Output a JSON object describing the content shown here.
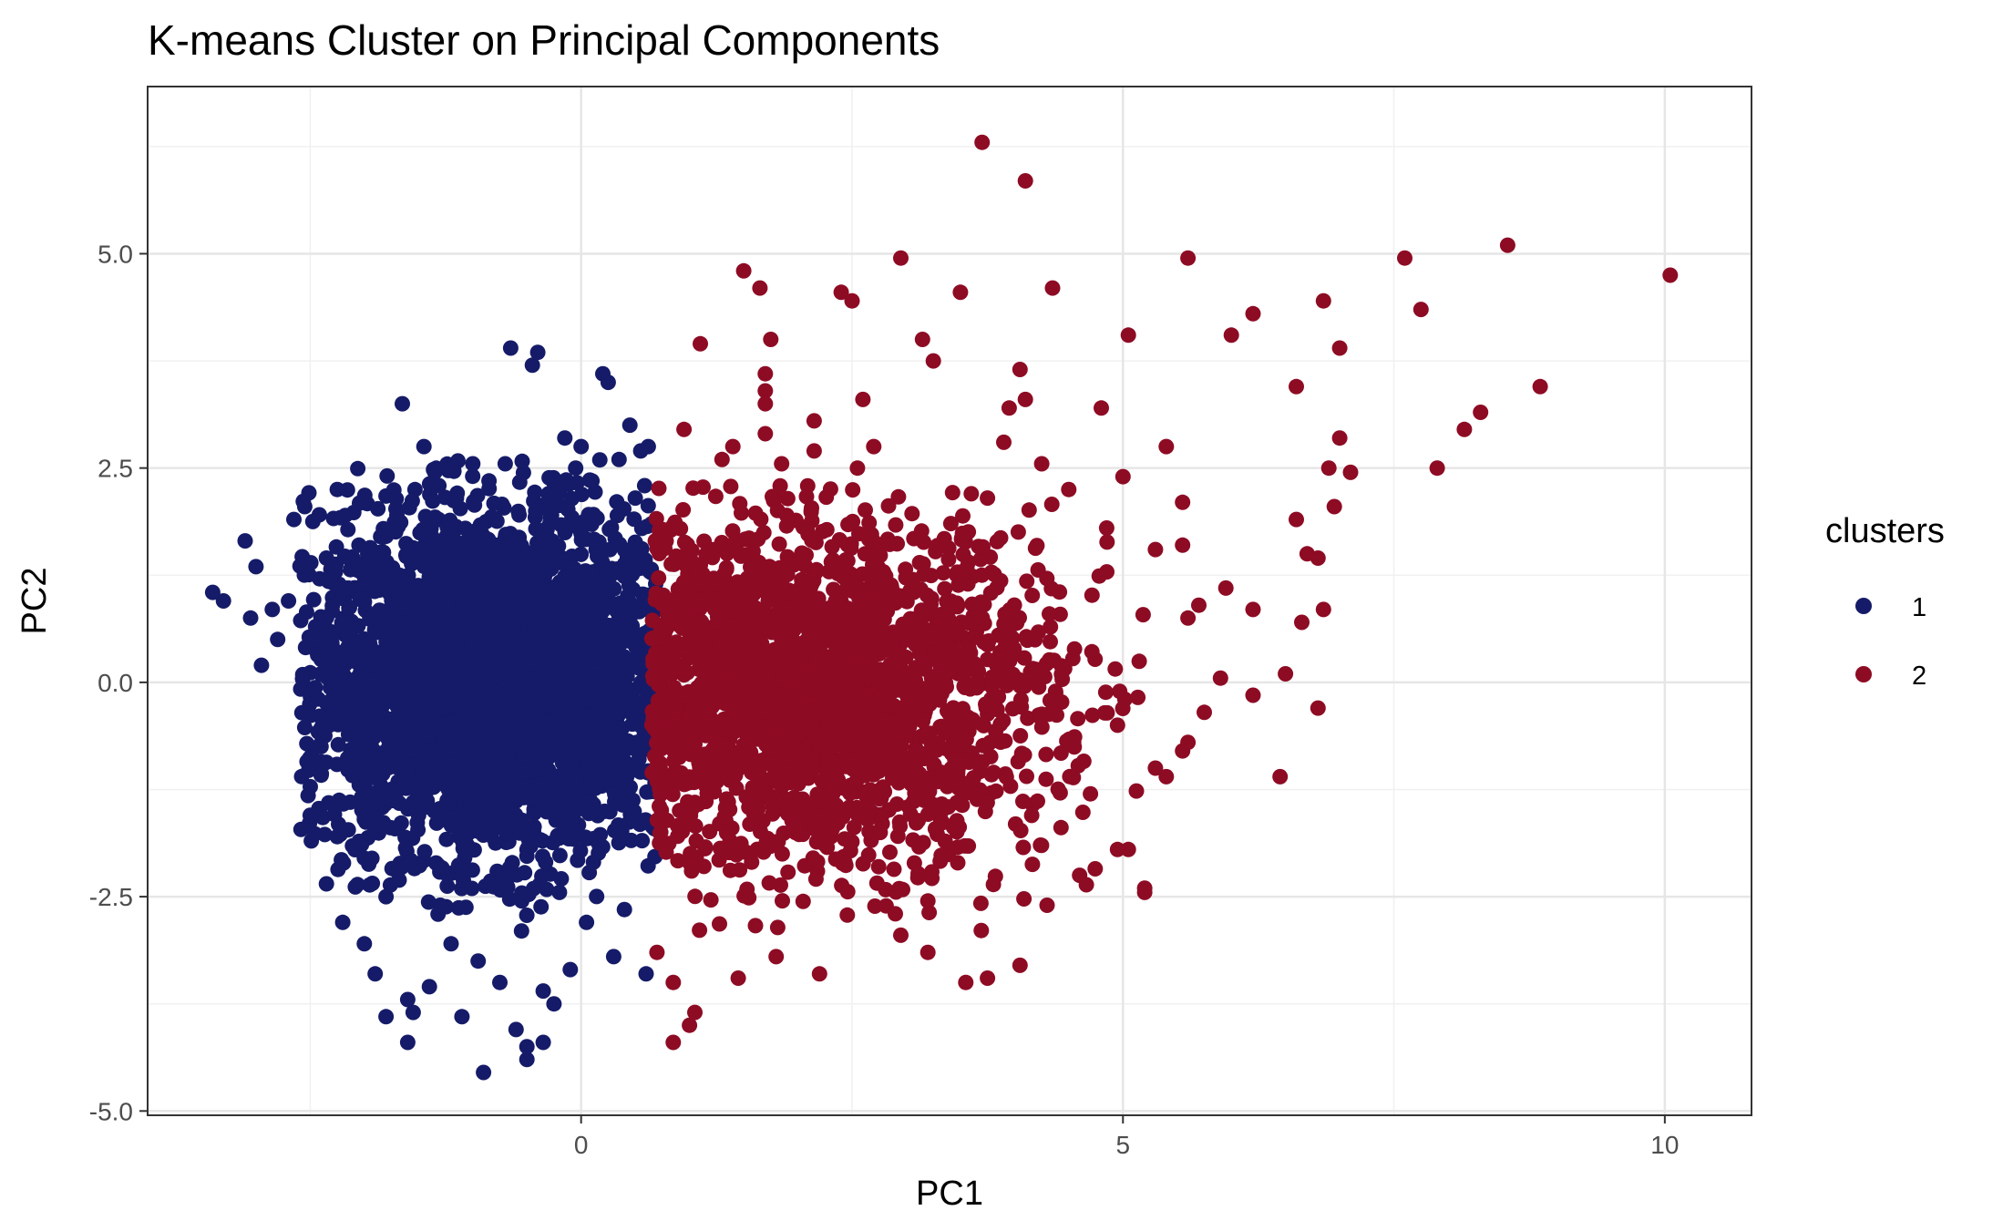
{
  "chart_data": {
    "type": "scatter",
    "title": "K-means Cluster on Principal Components",
    "xlabel": "PC1",
    "ylabel": "PC2",
    "xlim": [
      -4.0,
      10.8
    ],
    "ylim": [
      -5.05,
      6.95
    ],
    "x_ticks": [
      0,
      5,
      10
    ],
    "x_tick_labels": [
      "0",
      "5",
      "10"
    ],
    "y_ticks": [
      -5.0,
      -2.5,
      0.0,
      2.5,
      5.0
    ],
    "y_tick_labels": [
      "-5.0",
      "-2.5",
      "0.0",
      "2.5",
      "5.0"
    ],
    "grid": true,
    "legend": {
      "title": "clusters",
      "placement": "right"
    },
    "series": [
      {
        "name": "1",
        "color": "#151b68",
        "points": [
          [
            -3.4,
            1.05
          ],
          [
            -3.3,
            0.95
          ],
          [
            -3.1,
            1.65
          ],
          [
            -3.05,
            0.75
          ],
          [
            -3.0,
            1.35
          ],
          [
            -2.95,
            0.2
          ],
          [
            -2.85,
            0.85
          ],
          [
            -2.8,
            0.5
          ],
          [
            -2.7,
            0.95
          ],
          [
            -2.65,
            1.9
          ],
          [
            -2.55,
            2.05
          ],
          [
            -2.5,
            -1.55
          ],
          [
            -2.45,
            0.65
          ],
          [
            -2.4,
            -0.75
          ],
          [
            -2.35,
            1.45
          ],
          [
            -2.35,
            -2.35
          ],
          [
            -2.3,
            0.25
          ],
          [
            -2.25,
            2.25
          ],
          [
            -2.25,
            -1.8
          ],
          [
            -2.2,
            -2.8
          ],
          [
            -2.15,
            1.1
          ],
          [
            -2.1,
            -0.4
          ],
          [
            -2.05,
            1.6
          ],
          [
            -2.0,
            -2.05
          ],
          [
            -2.0,
            -3.05
          ],
          [
            -1.95,
            0.45
          ],
          [
            -1.9,
            -3.4
          ],
          [
            -1.85,
            -1.2
          ],
          [
            -1.85,
            1.7
          ],
          [
            -1.8,
            -3.9
          ],
          [
            -1.8,
            -2.5
          ],
          [
            -1.75,
            0.1
          ],
          [
            -1.7,
            1.95
          ],
          [
            -1.7,
            -2.2
          ],
          [
            -1.65,
            3.25
          ],
          [
            -1.6,
            -4.2
          ],
          [
            -1.55,
            -3.85
          ],
          [
            -1.5,
            -1.55
          ],
          [
            -1.45,
            2.75
          ],
          [
            -1.4,
            -3.55
          ],
          [
            -1.35,
            2.45
          ],
          [
            -1.3,
            -2.6
          ],
          [
            -1.25,
            0.9
          ],
          [
            -1.2,
            -3.05
          ],
          [
            -1.15,
            2.15
          ],
          [
            -1.1,
            -3.9
          ],
          [
            -1.05,
            -1.9
          ],
          [
            -1.0,
            2.55
          ],
          [
            -0.95,
            -3.25
          ],
          [
            -0.9,
            -4.55
          ],
          [
            -0.85,
            2.35
          ],
          [
            -0.8,
            -2.35
          ],
          [
            -0.75,
            -3.5
          ],
          [
            -0.7,
            2.55
          ],
          [
            -0.65,
            3.9
          ],
          [
            -0.6,
            -4.05
          ],
          [
            -0.55,
            -2.9
          ],
          [
            -0.5,
            -4.4
          ],
          [
            -0.45,
            3.7
          ],
          [
            -0.4,
            3.85
          ],
          [
            -0.35,
            -3.6
          ],
          [
            -0.3,
            2.2
          ],
          [
            -0.25,
            -3.75
          ],
          [
            -0.2,
            -2.45
          ],
          [
            -0.15,
            2.85
          ],
          [
            -0.1,
            -3.35
          ],
          [
            -0.05,
            2.5
          ],
          [
            0.0,
            2.75
          ],
          [
            0.05,
            -2.8
          ],
          [
            0.1,
            2.35
          ],
          [
            0.2,
            3.6
          ],
          [
            0.25,
            3.5
          ],
          [
            0.3,
            -3.2
          ],
          [
            0.35,
            2.6
          ],
          [
            0.4,
            -2.65
          ],
          [
            0.45,
            3.0
          ],
          [
            0.5,
            2.15
          ],
          [
            0.55,
            2.7
          ],
          [
            0.6,
            -3.4
          ],
          [
            0.62,
            2.75
          ],
          [
            0.65,
            1.85
          ],
          [
            -0.35,
            -4.2
          ],
          [
            -0.5,
            -4.25
          ],
          [
            -1.6,
            -3.7
          ]
        ],
        "blob": {
          "x_range": [
            -2.6,
            0.7
          ],
          "y_range": [
            -2.8,
            2.6
          ],
          "x_center": -0.8,
          "y_center": 0.0,
          "x_sd": 0.85,
          "y_sd": 1.0,
          "count": 3400
        }
      },
      {
        "name": "2",
        "color": "#8e0b24",
        "points": [
          [
            0.85,
            -4.2
          ],
          [
            1.05,
            -3.85
          ],
          [
            1.0,
            -4.0
          ],
          [
            1.1,
            3.95
          ],
          [
            0.95,
            2.95
          ],
          [
            1.5,
            4.8
          ],
          [
            1.65,
            4.6
          ],
          [
            1.75,
            4.0
          ],
          [
            1.7,
            3.6
          ],
          [
            1.7,
            3.4
          ],
          [
            1.7,
            3.25
          ],
          [
            2.15,
            3.05
          ],
          [
            2.4,
            4.55
          ],
          [
            2.5,
            4.45
          ],
          [
            2.95,
            4.95
          ],
          [
            3.15,
            4.0
          ],
          [
            3.25,
            3.75
          ],
          [
            3.5,
            4.55
          ],
          [
            3.7,
            6.3
          ],
          [
            4.1,
            5.85
          ],
          [
            4.35,
            4.6
          ],
          [
            4.05,
            3.65
          ],
          [
            3.95,
            3.2
          ],
          [
            4.1,
            3.3
          ],
          [
            4.8,
            3.2
          ],
          [
            5.05,
            4.05
          ],
          [
            5.6,
            4.95
          ],
          [
            6.0,
            4.05
          ],
          [
            6.2,
            4.3
          ],
          [
            6.6,
            3.45
          ],
          [
            6.85,
            4.45
          ],
          [
            7.0,
            3.9
          ],
          [
            7.6,
            4.95
          ],
          [
            7.75,
            4.35
          ],
          [
            8.15,
            2.95
          ],
          [
            8.3,
            3.15
          ],
          [
            8.55,
            5.1
          ],
          [
            8.85,
            3.45
          ],
          [
            10.05,
            4.75
          ],
          [
            7.9,
            2.5
          ],
          [
            7.0,
            2.85
          ],
          [
            6.9,
            2.5
          ],
          [
            7.1,
            2.45
          ],
          [
            6.95,
            2.05
          ],
          [
            6.6,
            1.9
          ],
          [
            6.7,
            1.5
          ],
          [
            6.8,
            1.45
          ],
          [
            6.85,
            0.85
          ],
          [
            6.65,
            0.7
          ],
          [
            6.5,
            0.1
          ],
          [
            6.8,
            -0.3
          ],
          [
            6.45,
            -1.1
          ],
          [
            6.2,
            -0.15
          ],
          [
            6.2,
            0.85
          ],
          [
            5.95,
            1.1
          ],
          [
            5.55,
            1.6
          ],
          [
            5.55,
            2.1
          ],
          [
            5.6,
            0.75
          ],
          [
            5.7,
            0.9
          ],
          [
            5.4,
            2.75
          ],
          [
            5.3,
            1.55
          ],
          [
            5.2,
            -2.4
          ],
          [
            5.2,
            -2.45
          ],
          [
            5.05,
            -1.95
          ],
          [
            4.95,
            -1.95
          ],
          [
            5.0,
            2.4
          ],
          [
            4.85,
            1.8
          ],
          [
            4.5,
            2.25
          ],
          [
            4.25,
            2.55
          ],
          [
            3.6,
            2.2
          ],
          [
            3.9,
            2.8
          ],
          [
            3.75,
            2.15
          ],
          [
            3.55,
            -3.5
          ],
          [
            3.75,
            -3.45
          ],
          [
            4.05,
            -3.3
          ],
          [
            4.3,
            -2.6
          ],
          [
            3.2,
            -3.15
          ],
          [
            2.95,
            -2.95
          ],
          [
            1.45,
            -3.45
          ],
          [
            1.8,
            -3.2
          ],
          [
            2.2,
            -3.4
          ],
          [
            0.85,
            -3.5
          ],
          [
            0.7,
            -3.15
          ],
          [
            2.6,
            3.3
          ],
          [
            2.7,
            2.75
          ],
          [
            2.55,
            2.5
          ],
          [
            2.15,
            2.7
          ],
          [
            1.85,
            2.55
          ],
          [
            1.7,
            2.9
          ],
          [
            1.3,
            2.6
          ],
          [
            1.4,
            2.75
          ],
          [
            5.55,
            -0.8
          ],
          [
            5.6,
            -0.7
          ],
          [
            5.3,
            -1.0
          ],
          [
            5.4,
            -1.1
          ],
          [
            5.9,
            0.05
          ],
          [
            5.75,
            -0.35
          ],
          [
            4.6,
            -2.25
          ],
          [
            4.7,
            -1.3
          ],
          [
            4.95,
            -0.5
          ],
          [
            2.9,
            -2.7
          ],
          [
            3.2,
            -2.55
          ]
        ],
        "blob": {
          "x_range": [
            0.65,
            5.2
          ],
          "y_range": [
            -2.9,
            2.3
          ],
          "x_center": 2.0,
          "y_center": -0.1,
          "x_sd": 1.15,
          "y_sd": 1.0,
          "count": 2300
        }
      }
    ]
  }
}
